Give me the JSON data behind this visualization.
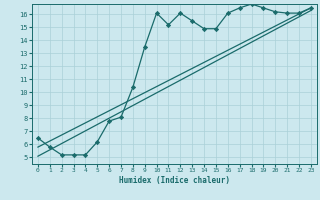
{
  "xlabel": "Humidex (Indice chaleur)",
  "bg_color": "#cce8ee",
  "grid_color": "#aad0d8",
  "line_color": "#1a6b6b",
  "xlim": [
    -0.5,
    23.5
  ],
  "ylim": [
    4.5,
    16.8
  ],
  "xticks": [
    0,
    1,
    2,
    3,
    4,
    5,
    6,
    7,
    8,
    9,
    10,
    11,
    12,
    13,
    14,
    15,
    16,
    17,
    18,
    19,
    20,
    21,
    22,
    23
  ],
  "yticks": [
    5,
    6,
    7,
    8,
    9,
    10,
    11,
    12,
    13,
    14,
    15,
    16
  ],
  "line1_x": [
    0,
    1,
    2,
    3,
    4,
    5,
    6,
    7,
    8,
    9,
    10,
    11,
    12,
    13,
    14,
    15,
    16,
    17,
    18,
    19,
    20,
    21,
    22,
    23
  ],
  "line1_y": [
    6.5,
    5.8,
    5.2,
    5.2,
    5.2,
    6.2,
    7.8,
    8.1,
    10.4,
    13.5,
    16.1,
    15.2,
    16.1,
    15.5,
    14.9,
    14.9,
    16.1,
    16.5,
    16.8,
    16.5,
    16.2,
    16.1,
    16.1,
    16.5
  ],
  "line2_x": [
    0,
    23
  ],
  "line2_y": [
    5.1,
    16.3
  ],
  "line3_x": [
    0,
    23
  ],
  "line3_y": [
    5.8,
    16.5
  ]
}
